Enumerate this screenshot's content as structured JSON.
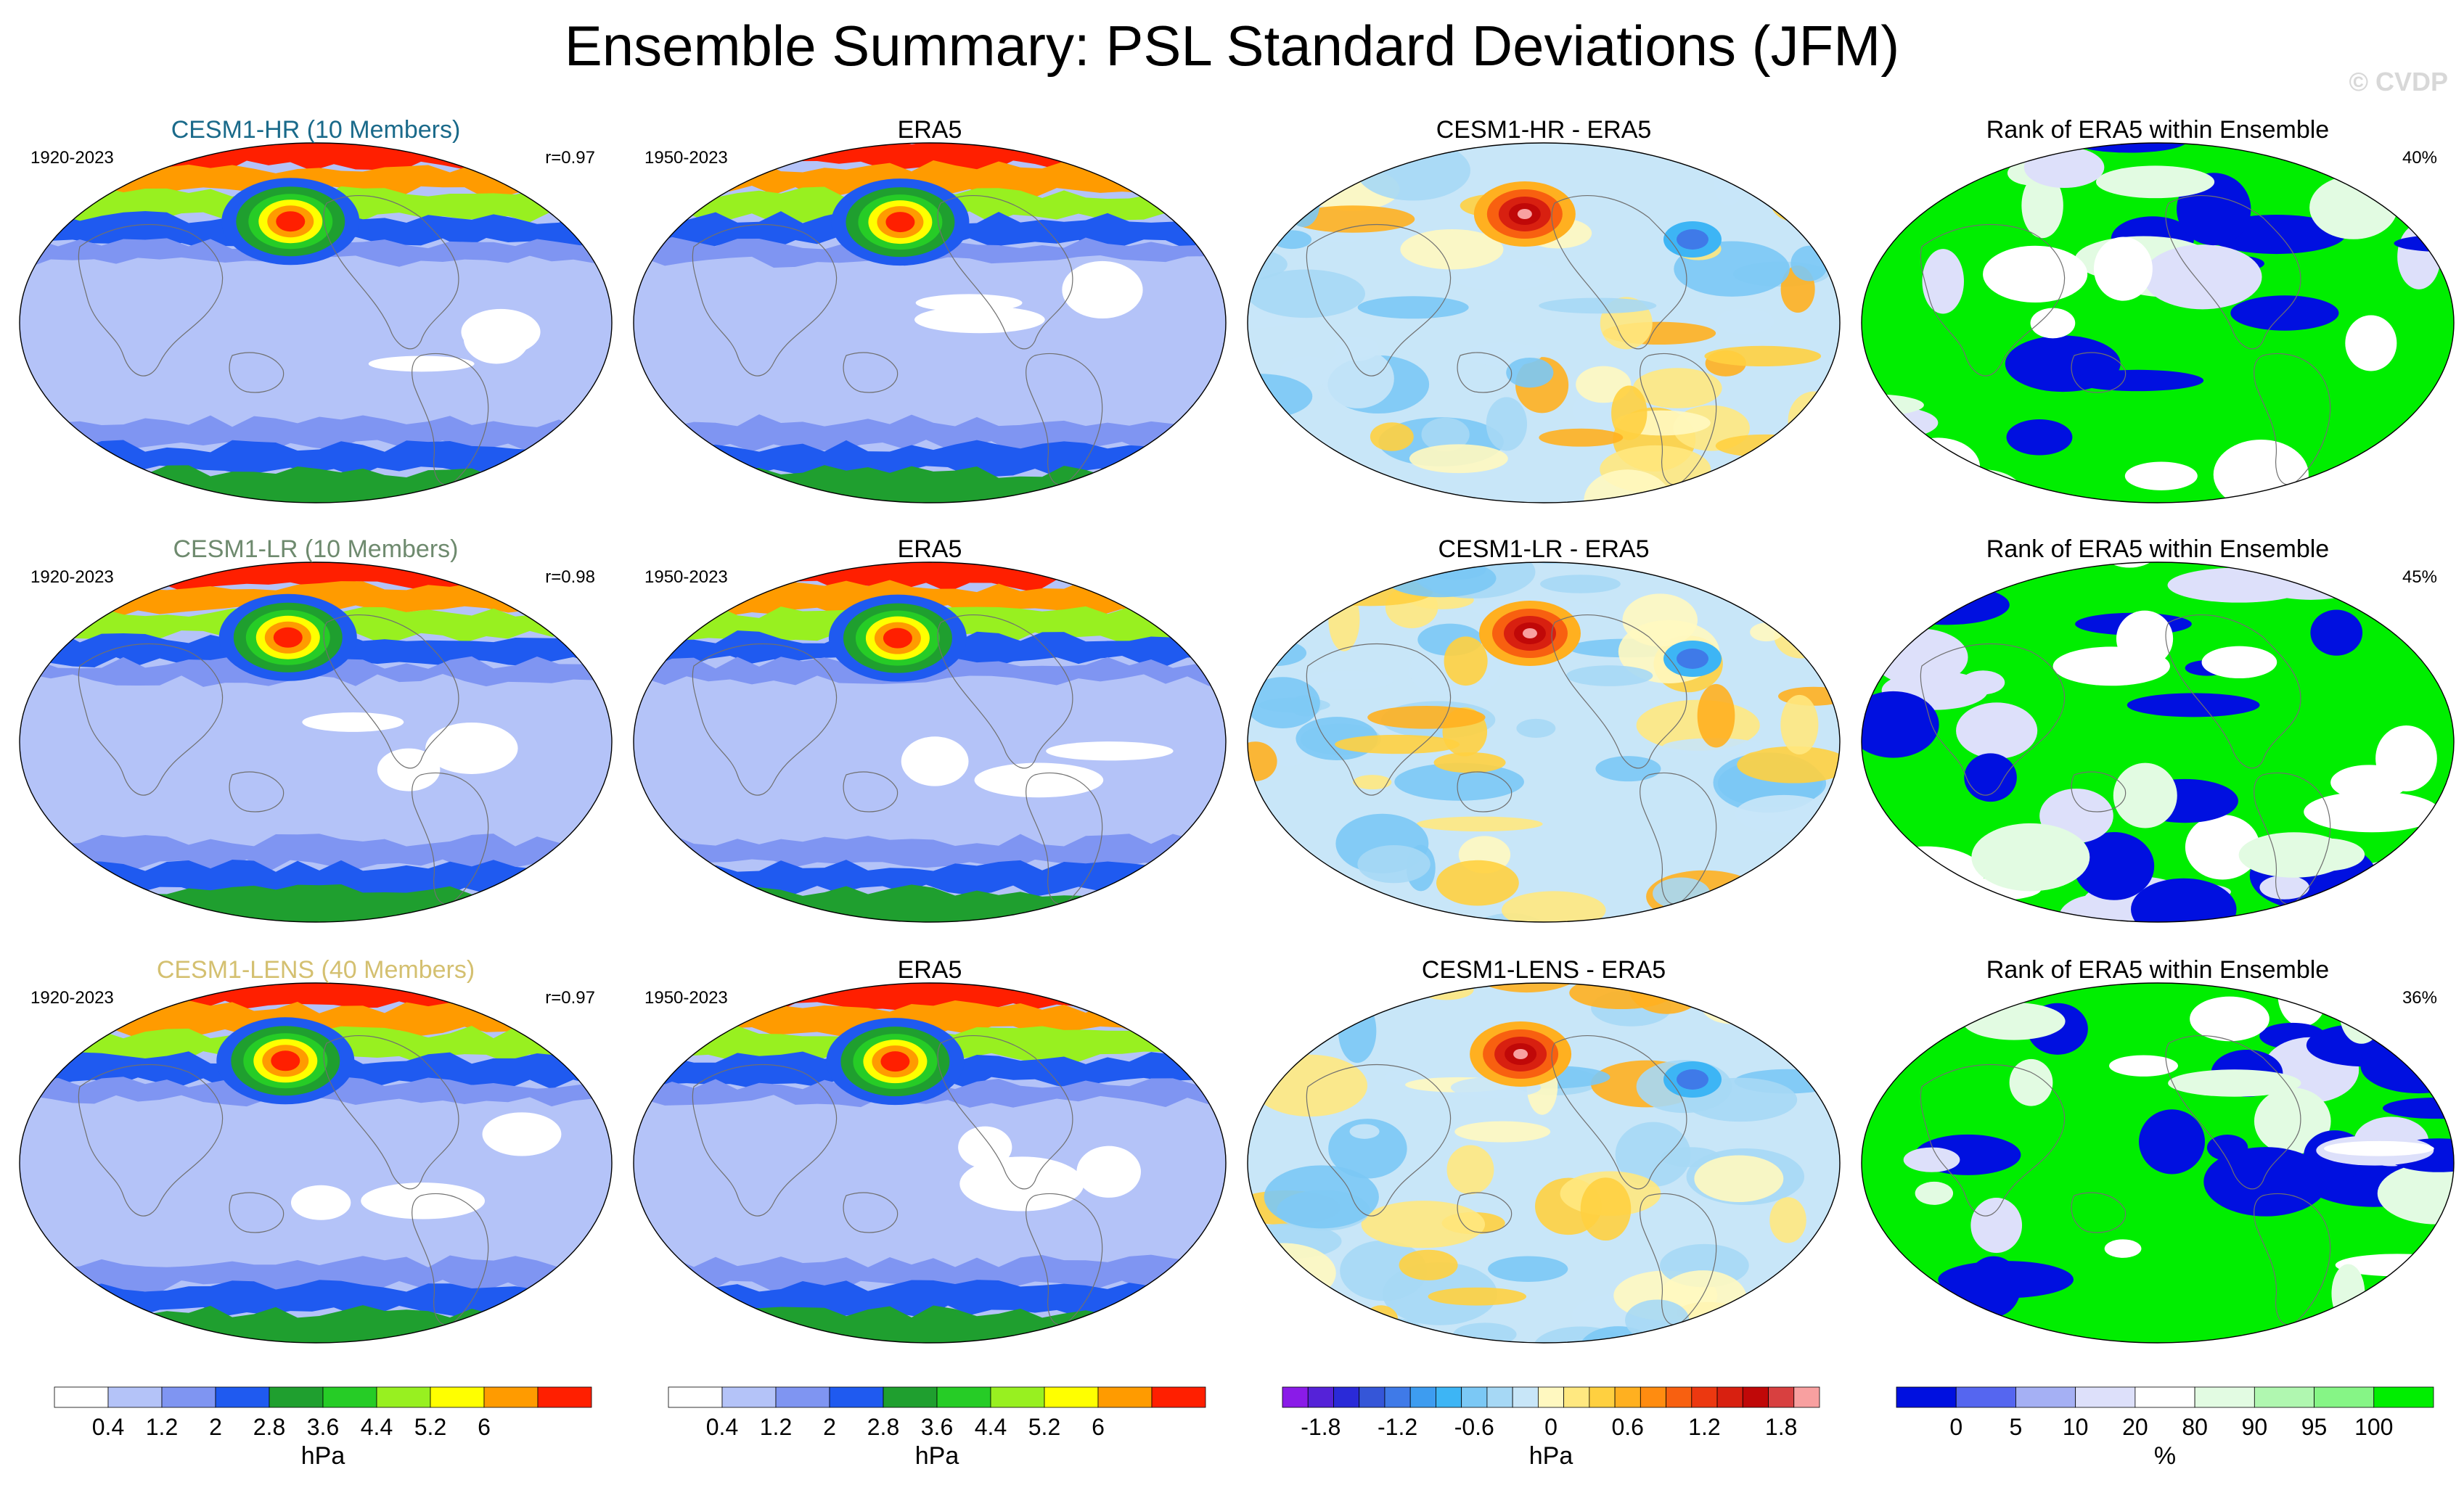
{
  "title": "Ensemble Summary: PSL Standard Deviations (JFM)",
  "watermark": "© CVDP",
  "colors": {
    "std": [
      "#ffffff",
      "#b4c3f8",
      "#7f95f2",
      "#1f5af0",
      "#1f9f2f",
      "#26cc26",
      "#98f020",
      "#ffff00",
      "#ff9b00",
      "#ff1f00"
    ],
    "diff": [
      "#8a1be8",
      "#5522d8",
      "#2a2ad8",
      "#3556d8",
      "#3f7ae8",
      "#3d9cf0",
      "#3db5f5",
      "#7bc8f5",
      "#a6d8f5",
      "#c8e6f8",
      "#fff8c0",
      "#ffe880",
      "#ffd040",
      "#ffb020",
      "#ff8c10",
      "#f86010",
      "#ec3810",
      "#d82010",
      "#c00808",
      "#d84040",
      "#f8a0a0"
    ],
    "rank": [
      "#0010e0",
      "#5566f0",
      "#a5b0f4",
      "#dde0fa",
      "#ffffff",
      "#e2fbe2",
      "#b0f7b0",
      "#86f586",
      "#00ee00"
    ],
    "land": "#707070",
    "title_hr": "#1a6a8a",
    "title_lr": "#6e8a6e",
    "title_lens": "#d4c070"
  },
  "rows": [
    {
      "ens_title": "CESM1-HR (10 Members)",
      "ens_years": "1920-2023",
      "ens_r": "r=0.97",
      "obs_title": "ERA5",
      "obs_years": "1950-2023",
      "diff_title": "CESM1-HR - ERA5",
      "rank_title": "Rank of ERA5 within Ensemble",
      "rank_pct": "40%"
    },
    {
      "ens_title": "CESM1-LR (10 Members)",
      "ens_years": "1920-2023",
      "ens_r": "r=0.98",
      "obs_title": "ERA5",
      "obs_years": "1950-2023",
      "diff_title": "CESM1-LR - ERA5",
      "rank_title": "Rank of ERA5 within Ensemble",
      "rank_pct": "45%"
    },
    {
      "ens_title": "CESM1-LENS (40 Members)",
      "ens_years": "1920-2023",
      "ens_r": "r=0.97",
      "obs_title": "ERA5",
      "obs_years": "1950-2023",
      "diff_title": "CESM1-LENS - ERA5",
      "rank_title": "Rank of ERA5 within Ensemble",
      "rank_pct": "36%"
    }
  ],
  "colorbars": [
    {
      "ticks": [
        "0.4",
        "1.2",
        "2",
        "2.8",
        "3.6",
        "4.4",
        "5.2",
        "6"
      ],
      "unit": "hPa"
    },
    {
      "ticks": [
        "0.4",
        "1.2",
        "2",
        "2.8",
        "3.6",
        "4.4",
        "5.2",
        "6"
      ],
      "unit": "hPa"
    },
    {
      "ticks": [
        "-1.8",
        "-1.2",
        "-0.6",
        "0",
        "0.6",
        "1.2",
        "1.8"
      ],
      "unit": "hPa"
    },
    {
      "ticks": [
        "0",
        "5",
        "10",
        "20",
        "80",
        "90",
        "95",
        "100"
      ],
      "unit": "%"
    }
  ]
}
